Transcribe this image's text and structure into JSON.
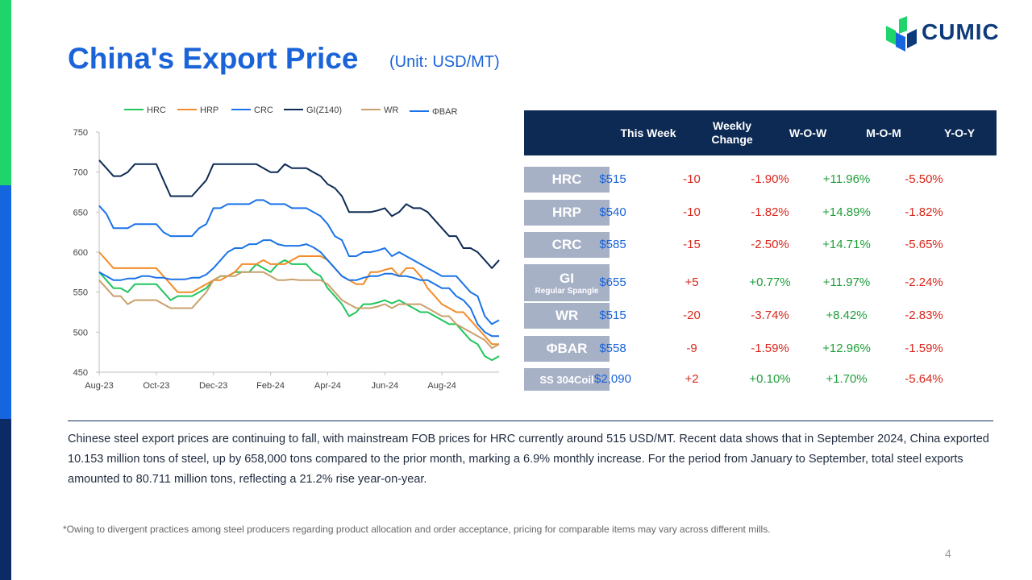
{
  "slide": {
    "title": "China's Export Price",
    "unit": "(Unit: USD/MT)",
    "page_number": "4",
    "summary": "Chinese steel export prices are continuing to fall, with mainstream FOB prices for HRC currently around 515 USD/MT. Recent data shows that in September 2024, China exported 10.153 million tons of steel, up by 658,000 tons compared to the prior month, marking a 6.9% monthly increase. For the period from January to September, total steel exports amounted to 80.711 million tons, reflecting a 21.2% rise year-on-year.",
    "footnote": "*Owing to divergent practices among steel producers regarding product allocation and order acceptance, pricing for comparable items may vary across different mills."
  },
  "logo": {
    "text": "CUMIC",
    "colors": [
      "#1fd46a",
      "#1565e0",
      "#0d3a7a"
    ]
  },
  "colors": {
    "title": "#1a63d8",
    "table_header": "#0d2a55",
    "row_label": "#a7b1c6",
    "negative": "#d9261c",
    "positive": "#1f9e3a",
    "price": "#1a63d8"
  },
  "table": {
    "headers": [
      "This Week",
      "Weekly Change",
      "W-O-W",
      "M-O-M",
      "Y-O-Y"
    ],
    "rows": [
      {
        "label": "HRC",
        "sublabel": "",
        "price": "$515",
        "change": "-10",
        "wow": "-1.90%",
        "mom": "+11.96%",
        "yoy": "-5.50%"
      },
      {
        "label": "HRP",
        "sublabel": "",
        "price": "$540",
        "change": "-10",
        "wow": "-1.82%",
        "mom": "+14.89%",
        "yoy": "-1.82%"
      },
      {
        "label": "CRC",
        "sublabel": "",
        "price": "$585",
        "change": "-15",
        "wow": "-2.50%",
        "mom": "+14.71%",
        "yoy": "-5.65%"
      },
      {
        "label": "GI",
        "sublabel": "Regular Spangle",
        "price": "$655",
        "change": "+5",
        "wow": "+0.77%",
        "mom": "+11.97%",
        "yoy": "-2.24%"
      },
      {
        "label": "WR",
        "sublabel": "",
        "price": "$515",
        "change": "-20",
        "wow": "-3.74%",
        "mom": "+8.42%",
        "yoy": "-2.83%"
      },
      {
        "label": "ΦBAR",
        "sublabel": "",
        "price": "$558",
        "change": "-9",
        "wow": "-1.59%",
        "mom": "+12.96%",
        "yoy": "-1.59%"
      },
      {
        "label": "SS 304Coil",
        "sublabel": "",
        "price": "$2,090",
        "change": "+2",
        "wow": "+0.10%",
        "mom": "+1.70%",
        "yoy": "-5.64%"
      }
    ]
  },
  "chart_data": {
    "type": "line",
    "title": "",
    "xlabel": "",
    "ylabel": "",
    "ylim": [
      450,
      750
    ],
    "yticks": [
      450,
      500,
      550,
      600,
      650,
      700,
      750
    ],
    "x_tick_labels": [
      "Aug-23",
      "Oct-23",
      "Dec-23",
      "Feb-24",
      "Apr-24",
      "Jun-24",
      "Aug-24"
    ],
    "x_tick_index": [
      0,
      8,
      16,
      24,
      32,
      40,
      48
    ],
    "grid": false,
    "legend_position": "top",
    "series": [
      {
        "name": "HRC",
        "color": "#22c55e",
        "values": [
          575,
          565,
          555,
          555,
          550,
          560,
          560,
          560,
          560,
          550,
          540,
          545,
          545,
          545,
          550,
          555,
          565,
          570,
          570,
          575,
          575,
          575,
          585,
          580,
          575,
          585,
          590,
          585,
          585,
          585,
          575,
          570,
          555,
          545,
          535,
          520,
          525,
          535,
          535,
          537,
          540,
          536,
          540,
          535,
          530,
          525,
          525,
          520,
          515,
          510,
          510,
          500,
          490,
          485,
          470,
          465,
          470
        ]
      },
      {
        "name": "HRP",
        "color": "#f28c28",
        "values": [
          600,
          590,
          580,
          580,
          580,
          580,
          580,
          580,
          580,
          570,
          560,
          550,
          550,
          550,
          555,
          560,
          565,
          565,
          570,
          575,
          585,
          585,
          585,
          590,
          585,
          585,
          585,
          590,
          595,
          595,
          595,
          595,
          590,
          580,
          570,
          565,
          560,
          560,
          575,
          575,
          578,
          580,
          570,
          580,
          580,
          570,
          555,
          545,
          535,
          530,
          525,
          525,
          515,
          505,
          495,
          485,
          485
        ]
      },
      {
        "name": "CRC",
        "color": "#1a73e8",
        "values": [
          575,
          570,
          565,
          565,
          567,
          567,
          570,
          570,
          568,
          568,
          566,
          566,
          566,
          568,
          568,
          572,
          580,
          590,
          600,
          605,
          605,
          610,
          610,
          615,
          615,
          610,
          608,
          608,
          608,
          610,
          606,
          600,
          590,
          580,
          570,
          565,
          565,
          568,
          570,
          570,
          573,
          573,
          570,
          570,
          568,
          565,
          565,
          560,
          555,
          555,
          545,
          540,
          530,
          510,
          500,
          495,
          495
        ]
      },
      {
        "name": "GI(Z140)",
        "color": "#0d2a55",
        "values": [
          715,
          705,
          695,
          695,
          700,
          710,
          710,
          710,
          710,
          690,
          670,
          670,
          670,
          670,
          680,
          690,
          710,
          710,
          710,
          710,
          710,
          710,
          710,
          705,
          700,
          700,
          710,
          705,
          705,
          705,
          700,
          695,
          685,
          680,
          670,
          650,
          650,
          650,
          650,
          652,
          655,
          645,
          650,
          660,
          655,
          655,
          650,
          640,
          630,
          620,
          620,
          605,
          605,
          600,
          590,
          580,
          590
        ]
      },
      {
        "name": "WR",
        "color": "#c9a06c",
        "values": [
          565,
          555,
          545,
          545,
          535,
          540,
          540,
          540,
          540,
          535,
          530,
          530,
          530,
          530,
          540,
          550,
          565,
          570,
          570,
          570,
          575,
          575,
          575,
          575,
          570,
          565,
          565,
          566,
          565,
          565,
          565,
          565,
          560,
          550,
          540,
          535,
          530,
          530,
          530,
          532,
          535,
          530,
          535,
          535,
          535,
          535,
          530,
          525,
          520,
          520,
          510,
          505,
          500,
          495,
          490,
          480,
          485
        ]
      },
      {
        "name": "ΦBAR",
        "color": "#1a73e8",
        "values": [
          658,
          648,
          630,
          630,
          630,
          635,
          635,
          635,
          635,
          625,
          620,
          620,
          620,
          620,
          630,
          635,
          655,
          655,
          660,
          660,
          660,
          660,
          665,
          665,
          660,
          660,
          660,
          655,
          655,
          655,
          650,
          645,
          635,
          620,
          615,
          595,
          595,
          600,
          600,
          602,
          605,
          595,
          600,
          595,
          590,
          585,
          580,
          575,
          570,
          570,
          570,
          560,
          550,
          545,
          520,
          510,
          515
        ]
      }
    ]
  }
}
